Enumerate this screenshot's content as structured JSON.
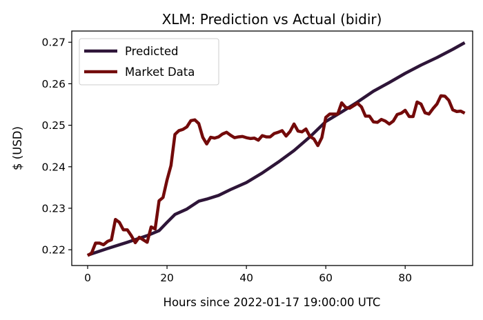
{
  "chart_data": {
    "type": "line",
    "title": "XLM: Prediction vs Actual (bidir)",
    "xlabel": "Hours since 2022-01-17 19:00:00 UTC",
    "ylabel": "$ (USD)",
    "xlim": [
      -4,
      97
    ],
    "ylim": [
      0.2162,
      0.2727
    ],
    "xticks": [
      0,
      20,
      40,
      60,
      80
    ],
    "xtick_labels": [
      "0",
      "20",
      "40",
      "60",
      "80"
    ],
    "yticks": [
      0.22,
      0.23,
      0.24,
      0.25,
      0.26,
      0.27
    ],
    "ytick_labels": [
      "0.22",
      "0.23",
      "0.24",
      "0.25",
      "0.26",
      "0.27"
    ],
    "grid": false,
    "legend_position": "upper left",
    "series": [
      {
        "name": "Predicted",
        "color": "#2e1538",
        "x": [
          0,
          5,
          10,
          15,
          18,
          20,
          22,
          25,
          28,
          30,
          33,
          36,
          40,
          44,
          48,
          52,
          56,
          60,
          64,
          68,
          72,
          76,
          80,
          84,
          88,
          92,
          95
        ],
        "y": [
          0.2187,
          0.2203,
          0.2218,
          0.2234,
          0.2246,
          0.2266,
          0.2285,
          0.2298,
          0.2317,
          0.2322,
          0.2331,
          0.2345,
          0.2362,
          0.2385,
          0.2411,
          0.2439,
          0.2472,
          0.2509,
          0.2532,
          0.2556,
          0.2582,
          0.2603,
          0.2625,
          0.2645,
          0.2663,
          0.2683,
          0.2699
        ]
      },
      {
        "name": "Market Data",
        "color": "#730a0a",
        "x": [
          0,
          1,
          2,
          3,
          4,
          5,
          6,
          7,
          8,
          9,
          10,
          11,
          12,
          13,
          14,
          15,
          16,
          17,
          18,
          19,
          20,
          21,
          22,
          23,
          24,
          25,
          26,
          27,
          28,
          29,
          30,
          31,
          32,
          33,
          34,
          35,
          36,
          37,
          38,
          39,
          40,
          41,
          42,
          43,
          44,
          45,
          46,
          47,
          48,
          49,
          50,
          51,
          52,
          53,
          54,
          55,
          56,
          57,
          58,
          59,
          60,
          61,
          62,
          63,
          64,
          65,
          66,
          67,
          68,
          69,
          70,
          71,
          72,
          73,
          74,
          75,
          76,
          77,
          78,
          79,
          80,
          81,
          82,
          83,
          84,
          85,
          86,
          87,
          88,
          89,
          90,
          91,
          92,
          93,
          94,
          95
        ],
        "y": [
          0.2186,
          0.2192,
          0.2216,
          0.2216,
          0.2212,
          0.222,
          0.2224,
          0.2273,
          0.2266,
          0.2248,
          0.2248,
          0.2234,
          0.2217,
          0.223,
          0.2224,
          0.2218,
          0.2255,
          0.225,
          0.2318,
          0.2326,
          0.2368,
          0.2403,
          0.2478,
          0.2487,
          0.249,
          0.2496,
          0.2511,
          0.2513,
          0.2504,
          0.2471,
          0.2455,
          0.2471,
          0.2469,
          0.2472,
          0.2479,
          0.2483,
          0.2476,
          0.247,
          0.2472,
          0.2473,
          0.247,
          0.2468,
          0.2469,
          0.2464,
          0.2475,
          0.2472,
          0.2472,
          0.248,
          0.2483,
          0.2487,
          0.2474,
          0.2485,
          0.2503,
          0.2486,
          0.2484,
          0.2491,
          0.2473,
          0.2467,
          0.2451,
          0.247,
          0.2519,
          0.2527,
          0.2527,
          0.2527,
          0.2554,
          0.2543,
          0.2541,
          0.2547,
          0.2553,
          0.2544,
          0.2522,
          0.2522,
          0.2508,
          0.2507,
          0.2514,
          0.251,
          0.2503,
          0.251,
          0.2526,
          0.2529,
          0.2536,
          0.2521,
          0.2521,
          0.2556,
          0.2551,
          0.253,
          0.2527,
          0.254,
          0.2551,
          0.2571,
          0.257,
          0.256,
          0.2537,
          0.2533,
          0.2534,
          0.2529
        ]
      }
    ]
  }
}
